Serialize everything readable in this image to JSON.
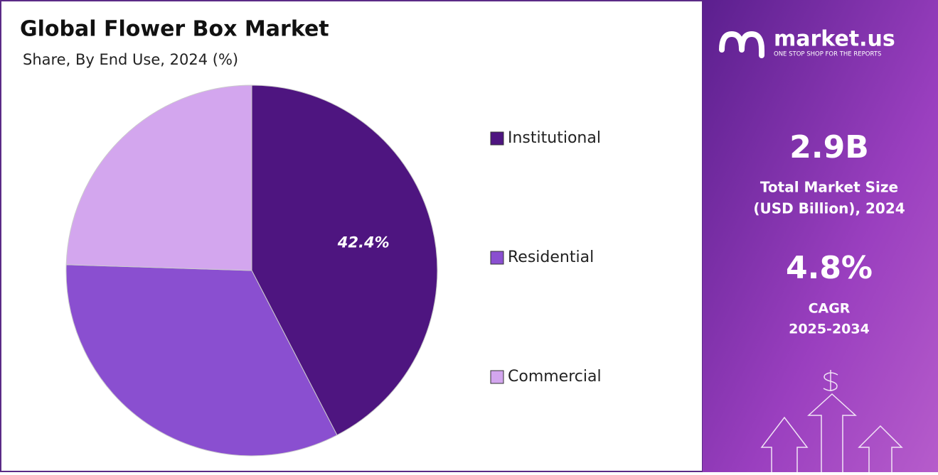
{
  "chart_data": {
    "type": "pie",
    "title": "Global Flower Box Market",
    "subtitle": "Share, By End Use, 2024 (%)",
    "categories": [
      "Institutional",
      "Residential",
      "Commercial"
    ],
    "values": [
      42.4,
      33.1,
      24.5
    ],
    "value_labels": [
      "42.4%",
      null,
      null
    ],
    "colors": [
      "#4e1580",
      "#8a4fd0",
      "#d3a6ee"
    ]
  },
  "panel": {
    "brand": "market.us",
    "tagline": "ONE STOP SHOP FOR THE REPORTS",
    "market_size": "2.9B",
    "market_size_label": [
      "Total Market Size",
      "(USD Billion), 2024"
    ],
    "cagr": "4.8%",
    "cagr_label": [
      "CAGR",
      "2025-2034"
    ]
  }
}
